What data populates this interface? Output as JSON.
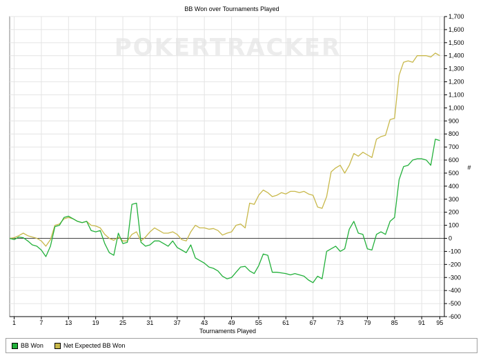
{
  "chart_data": {
    "type": "line",
    "title": "BB Won over Tournaments Played",
    "xlabel": "Tournaments Played",
    "ylabel": "#",
    "watermark": "POKERTRACKER",
    "xlim": [
      0,
      96
    ],
    "ylim": [
      -600,
      1700
    ],
    "x_ticks": [
      1,
      7,
      13,
      19,
      25,
      31,
      37,
      43,
      49,
      55,
      61,
      67,
      73,
      79,
      85,
      91,
      95
    ],
    "y_ticks": [
      -600,
      -500,
      -400,
      -300,
      -200,
      -100,
      0,
      100,
      200,
      300,
      400,
      500,
      600,
      700,
      800,
      900,
      1000,
      1100,
      1200,
      1300,
      1400,
      1500,
      1600,
      1700
    ],
    "y_axis_side": "right",
    "grid": true,
    "zero_line": true,
    "legend_position": "bottom",
    "series": [
      {
        "name": "BB Won",
        "color": "#22b03a",
        "x": [
          0,
          1,
          2,
          3,
          4,
          5,
          6,
          7,
          8,
          9,
          10,
          11,
          12,
          13,
          14,
          15,
          16,
          17,
          18,
          19,
          20,
          21,
          22,
          23,
          24,
          25,
          26,
          27,
          28,
          29,
          30,
          31,
          32,
          33,
          34,
          35,
          36,
          37,
          38,
          39,
          40,
          41,
          42,
          43,
          44,
          45,
          46,
          47,
          48,
          49,
          50,
          51,
          52,
          53,
          54,
          55,
          56,
          57,
          58,
          59,
          60,
          61,
          62,
          63,
          64,
          65,
          66,
          67,
          68,
          69,
          70,
          71,
          72,
          73,
          74,
          75,
          76,
          77,
          78,
          79,
          80,
          81,
          82,
          83,
          84,
          85,
          86,
          87,
          88,
          89,
          90,
          91,
          92,
          93,
          94,
          95
        ],
        "values": [
          0,
          -10,
          10,
          5,
          -20,
          -50,
          -60,
          -90,
          -140,
          -60,
          90,
          100,
          160,
          170,
          150,
          130,
          120,
          130,
          60,
          50,
          60,
          -40,
          -110,
          -130,
          40,
          -40,
          -30,
          260,
          270,
          -30,
          -60,
          -50,
          -20,
          -20,
          -40,
          -60,
          -20,
          -70,
          -90,
          -110,
          -50,
          -150,
          -170,
          -190,
          -220,
          -230,
          -250,
          -290,
          -310,
          -300,
          -260,
          -220,
          -215,
          -250,
          -270,
          -210,
          -120,
          -130,
          -260,
          -260,
          -265,
          -270,
          -280,
          -270,
          -280,
          -290,
          -320,
          -340,
          -290,
          -310,
          -100,
          -80,
          -60,
          -100,
          -80,
          70,
          130,
          40,
          30,
          -80,
          -90,
          30,
          50,
          30,
          130,
          160,
          450,
          550,
          560,
          600,
          610,
          610,
          600,
          560,
          760,
          750
        ]
      },
      {
        "name": "Net Expected BB Won",
        "color": "#c8b84a",
        "x": [
          0,
          1,
          2,
          3,
          4,
          5,
          6,
          7,
          8,
          9,
          10,
          11,
          12,
          13,
          14,
          15,
          16,
          17,
          18,
          19,
          20,
          21,
          22,
          23,
          24,
          25,
          26,
          27,
          28,
          29,
          30,
          31,
          32,
          33,
          34,
          35,
          36,
          37,
          38,
          39,
          40,
          41,
          42,
          43,
          44,
          45,
          46,
          47,
          48,
          49,
          50,
          51,
          52,
          53,
          54,
          55,
          56,
          57,
          58,
          59,
          60,
          61,
          62,
          63,
          64,
          65,
          66,
          67,
          68,
          69,
          70,
          71,
          72,
          73,
          74,
          75,
          76,
          77,
          78,
          79,
          80,
          81,
          82,
          83,
          84,
          85,
          86,
          87,
          88,
          89,
          90,
          91,
          92,
          93,
          94,
          95
        ],
        "values": [
          0,
          5,
          20,
          40,
          20,
          10,
          0,
          -20,
          -60,
          -10,
          100,
          110,
          150,
          160,
          150,
          130,
          120,
          130,
          100,
          95,
          80,
          30,
          0,
          -15,
          10,
          -20,
          -20,
          30,
          50,
          -20,
          10,
          50,
          80,
          60,
          40,
          40,
          50,
          30,
          -10,
          -20,
          50,
          100,
          80,
          80,
          70,
          75,
          60,
          25,
          40,
          50,
          100,
          110,
          80,
          270,
          260,
          330,
          370,
          350,
          320,
          330,
          350,
          340,
          360,
          360,
          350,
          360,
          340,
          330,
          240,
          230,
          320,
          510,
          540,
          560,
          500,
          560,
          650,
          630,
          660,
          640,
          620,
          760,
          780,
          790,
          910,
          920,
          1250,
          1350,
          1360,
          1350,
          1400,
          1400,
          1400,
          1390,
          1420,
          1400
        ]
      }
    ]
  },
  "legend": {
    "items": [
      {
        "label": "BB Won",
        "color": "#22b03a"
      },
      {
        "label": "Net Expected BB Won",
        "color": "#c8b84a"
      }
    ]
  }
}
